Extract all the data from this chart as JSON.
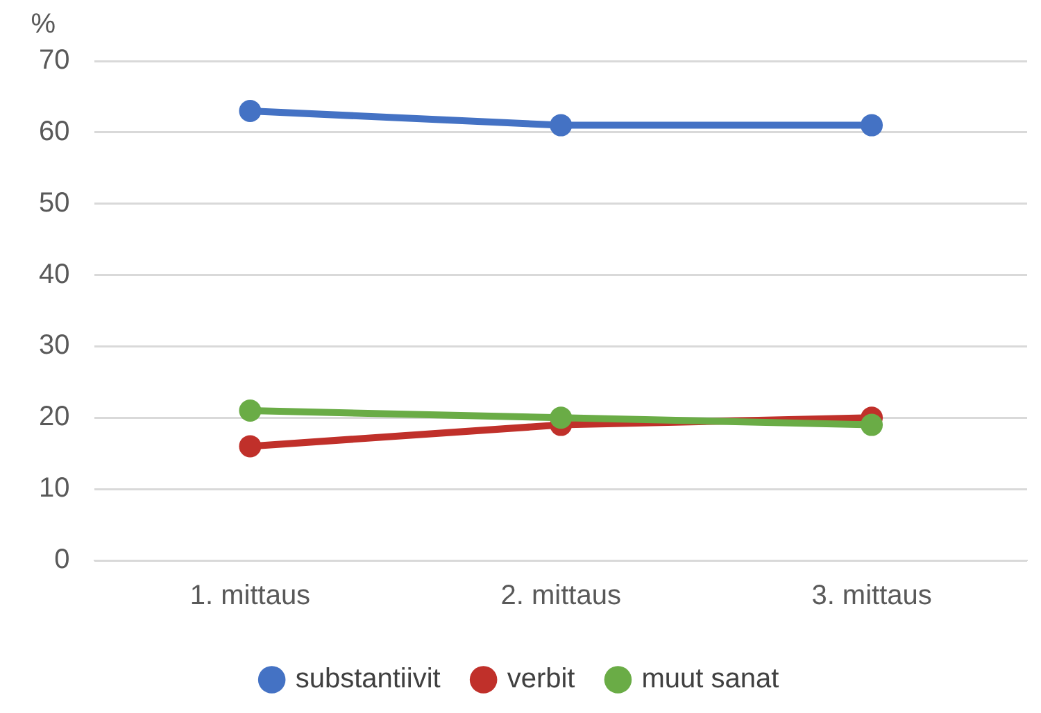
{
  "chart_data": {
    "type": "line",
    "ylabel": "%",
    "categories": [
      "1. mittaus",
      "2. mittaus",
      "3. mittaus"
    ],
    "series": [
      {
        "name": "substantiivit",
        "color": "#4472c4",
        "values": [
          63,
          61,
          61
        ]
      },
      {
        "name": "verbit",
        "color": "#c0302a",
        "values": [
          16,
          19,
          20
        ]
      },
      {
        "name": "muut sanat",
        "color": "#6aac46",
        "values": [
          21,
          20,
          19
        ]
      }
    ],
    "ylim": [
      0,
      70
    ],
    "yticks": [
      0,
      10,
      20,
      30,
      40,
      50,
      60,
      70
    ],
    "grid": "y",
    "legend": "bottom",
    "marker": "circle",
    "line_style": "solid"
  }
}
